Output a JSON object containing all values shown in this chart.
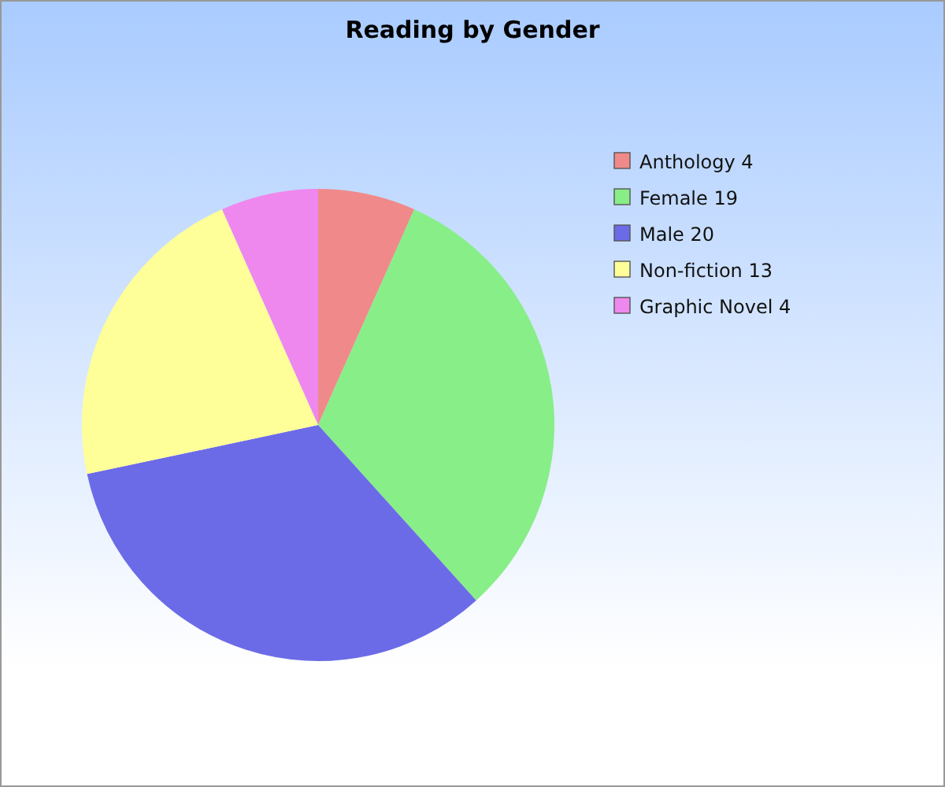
{
  "chart_data": {
    "type": "pie",
    "title": "Reading by Gender",
    "categories": [
      "Anthology 4",
      "Female 19",
      "Male 20",
      "Non-fiction 13",
      "Graphic Novel 4"
    ],
    "values": [
      4,
      19,
      20,
      13,
      4
    ],
    "colors": [
      "#f08a8a",
      "#88ee88",
      "#6b6be8",
      "#ffff99",
      "#ee88ee"
    ],
    "legend": "top right"
  }
}
